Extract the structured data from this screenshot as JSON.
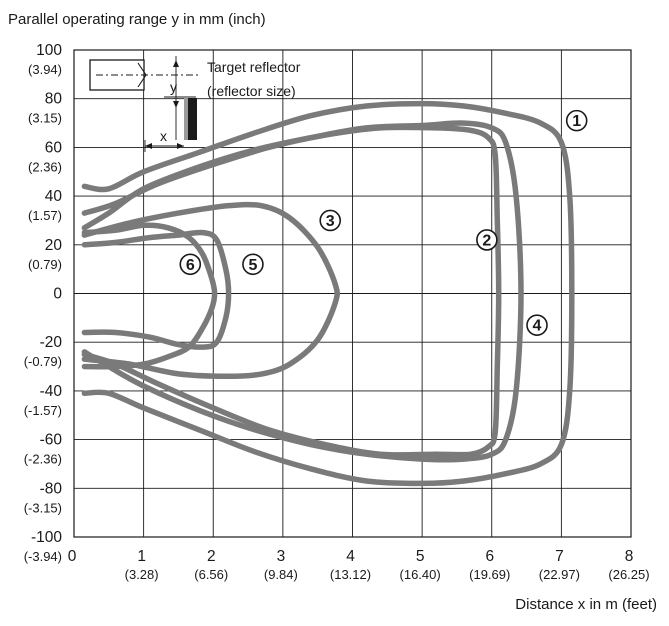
{
  "chart_data": {
    "type": "line",
    "title": "Parallel operating range y in mm (inch)",
    "xlabel": "Distance x in m (feet)",
    "xlim": [
      0,
      8
    ],
    "ylim": [
      -100,
      100
    ],
    "grid": true,
    "x_ticks": [
      {
        "value": 0,
        "label": "0",
        "sub": ""
      },
      {
        "value": 1,
        "label": "1",
        "sub": "(3.28)"
      },
      {
        "value": 2,
        "label": "2",
        "sub": "(6.56)"
      },
      {
        "value": 3,
        "label": "3",
        "sub": "(9.84)"
      },
      {
        "value": 4,
        "label": "4",
        "sub": "(13.12)"
      },
      {
        "value": 5,
        "label": "5",
        "sub": "(16.40)"
      },
      {
        "value": 6,
        "label": "6",
        "sub": "(19.69)"
      },
      {
        "value": 7,
        "label": "7",
        "sub": "(22.97)"
      },
      {
        "value": 8,
        "label": "8",
        "sub": "(26.25)"
      }
    ],
    "y_ticks": [
      {
        "value": 100,
        "label": "100",
        "sub": "(3.94)"
      },
      {
        "value": 80,
        "label": "80",
        "sub": "(3.15)"
      },
      {
        "value": 60,
        "label": "60",
        "sub": "(2.36)"
      },
      {
        "value": 40,
        "label": "40",
        "sub": "(1.57)"
      },
      {
        "value": 20,
        "label": "20",
        "sub": "(0.79)"
      },
      {
        "value": 0,
        "label": "0",
        "sub": ""
      },
      {
        "value": -20,
        "label": "-20",
        "sub": "(-0.79)"
      },
      {
        "value": -40,
        "label": "-40",
        "sub": "(-1.57)"
      },
      {
        "value": -60,
        "label": "-60",
        "sub": "(-2.36)"
      },
      {
        "value": -80,
        "label": "-80",
        "sub": "(-3.15)"
      },
      {
        "value": -100,
        "label": "-100",
        "sub": "(-3.94)"
      }
    ],
    "inset": {
      "label_line1": "Target reflector",
      "label_line2": "(reflector size)",
      "x_symbol": "x",
      "y_symbol": "y"
    },
    "series": [
      {
        "name": "①",
        "label_at": [
          7.22,
          71
        ],
        "points": [
          [
            0.15,
            44
          ],
          [
            0.5,
            43
          ],
          [
            1.0,
            50
          ],
          [
            1.8,
            58
          ],
          [
            2.6,
            66
          ],
          [
            3.4,
            73
          ],
          [
            4.2,
            77
          ],
          [
            5.0,
            78
          ],
          [
            5.6,
            77
          ],
          [
            6.2,
            74
          ],
          [
            6.7,
            70
          ],
          [
            7.0,
            62
          ],
          [
            7.12,
            40
          ],
          [
            7.15,
            0
          ],
          [
            7.12,
            -40
          ],
          [
            7.0,
            -62
          ],
          [
            6.7,
            -70
          ],
          [
            6.2,
            -74
          ],
          [
            5.6,
            -77
          ],
          [
            5.0,
            -78
          ],
          [
            4.2,
            -77
          ],
          [
            3.4,
            -72
          ],
          [
            2.6,
            -65
          ],
          [
            1.8,
            -56
          ],
          [
            1.0,
            -47
          ],
          [
            0.5,
            -41
          ],
          [
            0.15,
            -41
          ]
        ]
      },
      {
        "name": "②",
        "label_at": [
          5.93,
          22
        ],
        "points": [
          [
            0.15,
            33
          ],
          [
            0.6,
            37
          ],
          [
            1.2,
            45
          ],
          [
            2.0,
            53
          ],
          [
            2.8,
            60
          ],
          [
            3.6,
            65
          ],
          [
            4.4,
            68
          ],
          [
            5.2,
            68
          ],
          [
            5.7,
            67
          ],
          [
            5.95,
            64
          ],
          [
            6.05,
            57
          ],
          [
            6.08,
            30
          ],
          [
            6.1,
            0
          ],
          [
            6.08,
            -30
          ],
          [
            6.05,
            -57
          ],
          [
            5.95,
            -63
          ],
          [
            5.7,
            -66
          ],
          [
            5.2,
            -66
          ],
          [
            4.4,
            -66
          ],
          [
            3.6,
            -62
          ],
          [
            2.8,
            -56
          ],
          [
            2.0,
            -47
          ],
          [
            1.2,
            -37
          ],
          [
            0.6,
            -29
          ],
          [
            0.15,
            -25
          ]
        ]
      },
      {
        "name": "③",
        "label_at": [
          3.68,
          30
        ],
        "points": [
          [
            0.15,
            24
          ],
          [
            0.8,
            29
          ],
          [
            1.5,
            33
          ],
          [
            2.2,
            36
          ],
          [
            2.7,
            36
          ],
          [
            3.1,
            31
          ],
          [
            3.5,
            19
          ],
          [
            3.75,
            4
          ],
          [
            3.75,
            -4
          ],
          [
            3.5,
            -19
          ],
          [
            3.1,
            -29
          ],
          [
            2.7,
            -33
          ],
          [
            2.2,
            -34
          ],
          [
            1.5,
            -33
          ],
          [
            0.8,
            -29
          ],
          [
            0.15,
            -27
          ]
        ]
      },
      {
        "name": "④",
        "label_at": [
          6.65,
          -13
        ],
        "points": [
          [
            0.15,
            27
          ],
          [
            0.5,
            33
          ],
          [
            1.0,
            43
          ],
          [
            1.8,
            52
          ],
          [
            2.6,
            59
          ],
          [
            3.4,
            64
          ],
          [
            4.2,
            68
          ],
          [
            5.0,
            69
          ],
          [
            5.6,
            70
          ],
          [
            6.0,
            68
          ],
          [
            6.2,
            62
          ],
          [
            6.35,
            40
          ],
          [
            6.42,
            0
          ],
          [
            6.35,
            -40
          ],
          [
            6.2,
            -60
          ],
          [
            6.0,
            -66
          ],
          [
            5.6,
            -68
          ],
          [
            5.0,
            -68
          ],
          [
            4.2,
            -66
          ],
          [
            3.4,
            -62
          ],
          [
            2.6,
            -56
          ],
          [
            1.8,
            -48
          ],
          [
            1.0,
            -38
          ],
          [
            0.5,
            -30
          ],
          [
            0.15,
            -24
          ]
        ]
      },
      {
        "name": "⑤",
        "label_at": [
          2.57,
          12
        ],
        "points": [
          [
            0.15,
            20
          ],
          [
            0.6,
            21
          ],
          [
            1.1,
            23
          ],
          [
            1.5,
            24
          ],
          [
            1.85,
            25
          ],
          [
            2.05,
            22
          ],
          [
            2.18,
            10
          ],
          [
            2.22,
            0
          ],
          [
            2.18,
            -10
          ],
          [
            2.05,
            -20
          ],
          [
            1.85,
            -22
          ],
          [
            1.5,
            -21
          ],
          [
            1.1,
            -18
          ],
          [
            0.6,
            -16
          ],
          [
            0.15,
            -16
          ]
        ]
      },
      {
        "name": "⑥",
        "label_at": [
          1.67,
          12
        ],
        "points": [
          [
            0.15,
            25
          ],
          [
            0.6,
            26
          ],
          [
            1.0,
            28
          ],
          [
            1.35,
            27
          ],
          [
            1.65,
            23
          ],
          [
            1.85,
            16
          ],
          [
            1.98,
            6
          ],
          [
            2.02,
            0
          ],
          [
            1.98,
            -6
          ],
          [
            1.85,
            -14
          ],
          [
            1.65,
            -22
          ],
          [
            1.35,
            -26
          ],
          [
            1.0,
            -29
          ],
          [
            0.6,
            -30
          ],
          [
            0.15,
            -30
          ]
        ]
      }
    ]
  }
}
